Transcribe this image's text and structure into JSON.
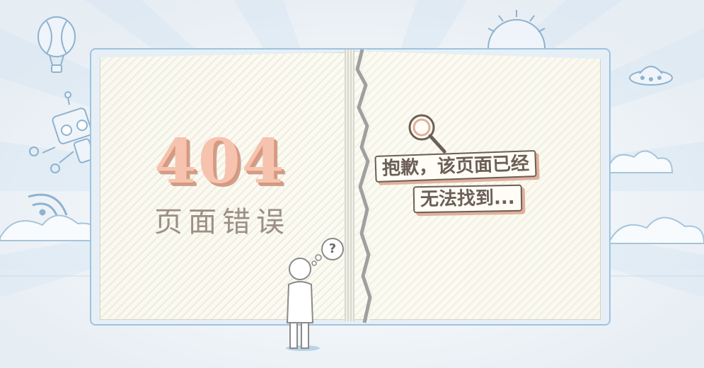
{
  "error": {
    "code": "404",
    "subtitle": "页面错误"
  },
  "message": {
    "line1": "抱歉，该页面已经",
    "line2": "无法找到..."
  },
  "thought_bubble": "?",
  "colors": {
    "background": "#f2f4f6",
    "book_border": "#9fc3df",
    "page": "#fcfbf2",
    "code_fill": "#f6c3ae",
    "code_shadow": "#d9977e",
    "text_dark": "#6b5f56",
    "sky_blue": "#dbeaf5"
  },
  "icons": [
    "hot-air-balloon-icon",
    "sun-icon",
    "ufo-icon",
    "robot-icon",
    "wifi-icon",
    "cloud-icon",
    "magnifier-icon",
    "person-icon"
  ]
}
